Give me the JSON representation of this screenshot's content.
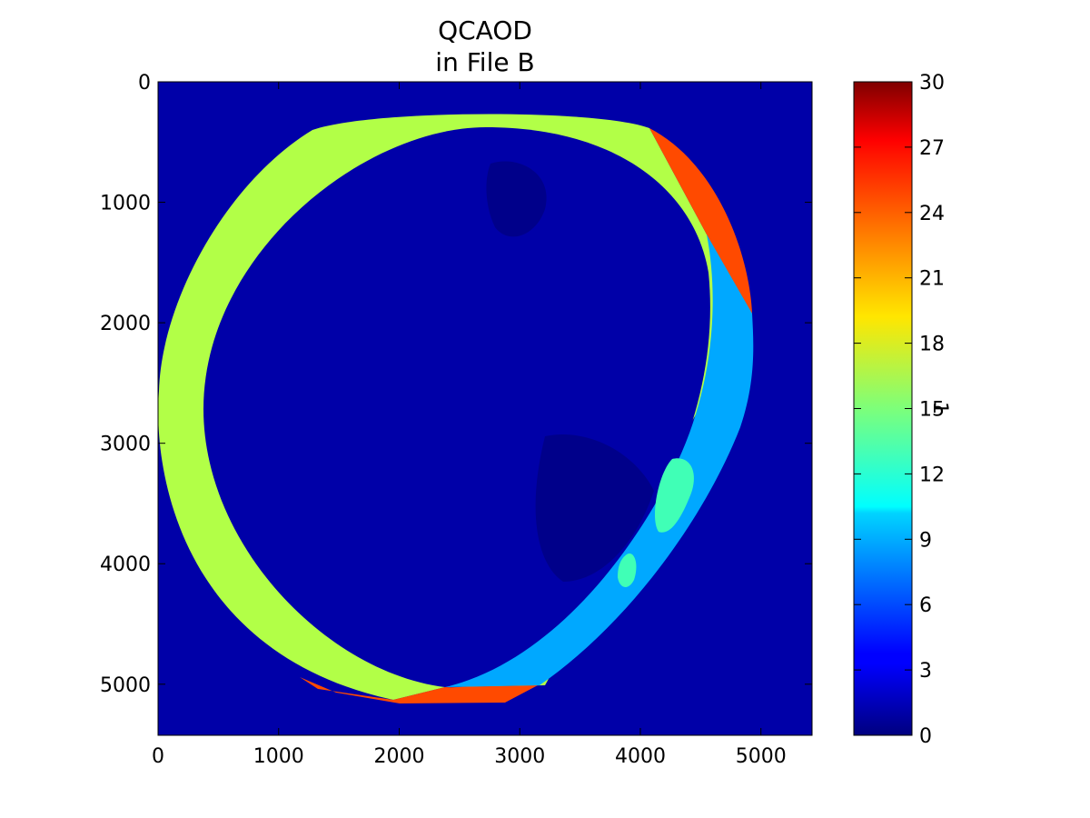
{
  "chart_data": {
    "type": "heatmap",
    "title_lines": [
      "QCAOD",
      "in File B"
    ],
    "xlim": [
      0,
      5424
    ],
    "ylim": [
      5424,
      0
    ],
    "x_ticks": [
      0,
      1000,
      2000,
      3000,
      4000,
      5000
    ],
    "y_ticks": [
      0,
      1000,
      2000,
      3000,
      4000,
      5000
    ],
    "colorbar": {
      "label": "1",
      "range": [
        0,
        30
      ],
      "ticks": [
        0,
        3,
        6,
        9,
        12,
        15,
        18,
        21,
        24,
        27,
        30
      ],
      "colormap": "jet"
    },
    "background_value": 1,
    "regions": [
      {
        "name": "outer-ring",
        "value": 17
      },
      {
        "name": "upper-right-edge",
        "value": 25
      },
      {
        "name": "bottom-edge",
        "value": 25
      },
      {
        "name": "east-crescent",
        "value": 8
      },
      {
        "name": "disk-interior",
        "value": 1
      }
    ]
  },
  "colors": {
    "background": "#0000a8",
    "interior_dark": "#00008a",
    "ring": "#b2ff47",
    "edge": "#ff4a00",
    "crescent": "#00a8ff",
    "crescent_patch": "#40ffb6"
  }
}
